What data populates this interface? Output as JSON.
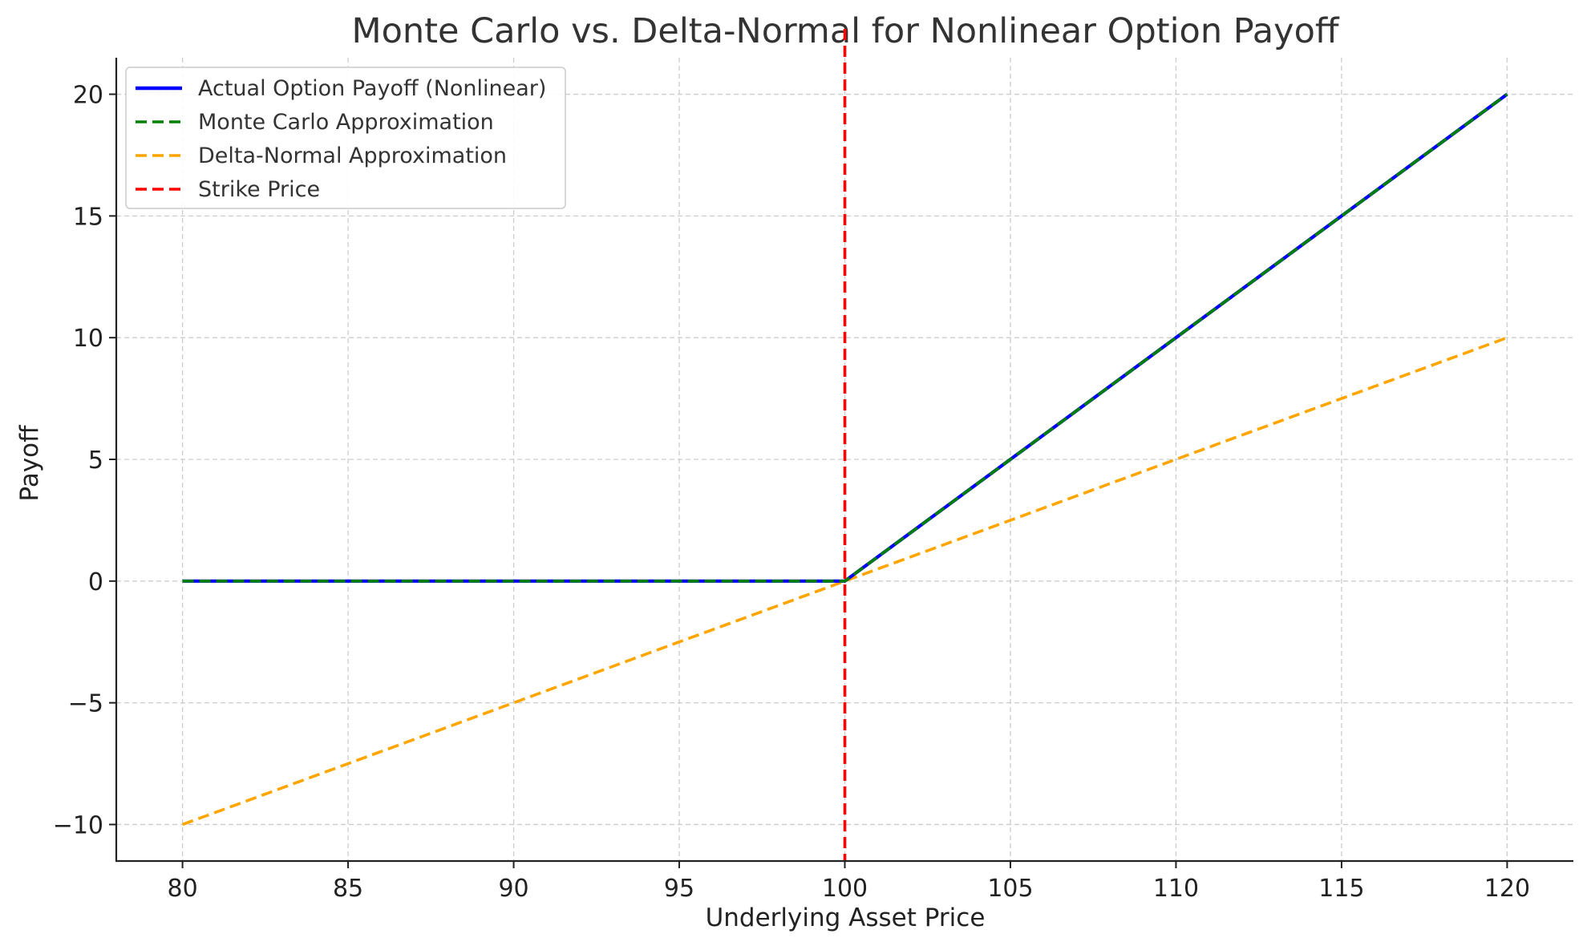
{
  "chart_data": {
    "type": "line",
    "title": "Monte Carlo vs. Delta-Normal for Nonlinear Option Payoff",
    "xlabel": "Underlying Asset Price",
    "ylabel": "Payoff",
    "xlim": [
      78,
      122
    ],
    "ylim": [
      -11.5,
      21.5
    ],
    "xticks": [
      80,
      85,
      90,
      95,
      100,
      105,
      110,
      115,
      120
    ],
    "xtick_labels": [
      "80",
      "85",
      "90",
      "95",
      "100",
      "105",
      "110",
      "115",
      "120"
    ],
    "yticks": [
      -10,
      -5,
      0,
      5,
      10,
      15,
      20
    ],
    "ytick_labels": [
      "−10",
      "−5",
      "0",
      "5",
      "10",
      "15",
      "20"
    ],
    "grid": true,
    "legend_position": "top-left",
    "series": [
      {
        "name": "Actual Option Payoff (Nonlinear)",
        "style": "solid",
        "color": "#0000ff",
        "x": [
          80,
          100,
          120
        ],
        "y": [
          0,
          0,
          20
        ]
      },
      {
        "name": "Monte Carlo Approximation",
        "style": "dashed",
        "color": "#008000",
        "x": [
          80,
          100,
          120
        ],
        "y": [
          0,
          0,
          20
        ]
      },
      {
        "name": "Delta-Normal Approximation",
        "style": "dashed",
        "color": "#ffa500",
        "x": [
          80,
          120
        ],
        "y": [
          -10,
          10
        ]
      },
      {
        "name": "Strike Price",
        "style": "dashed",
        "color": "#ff0000",
        "vline_x": 100
      }
    ]
  }
}
